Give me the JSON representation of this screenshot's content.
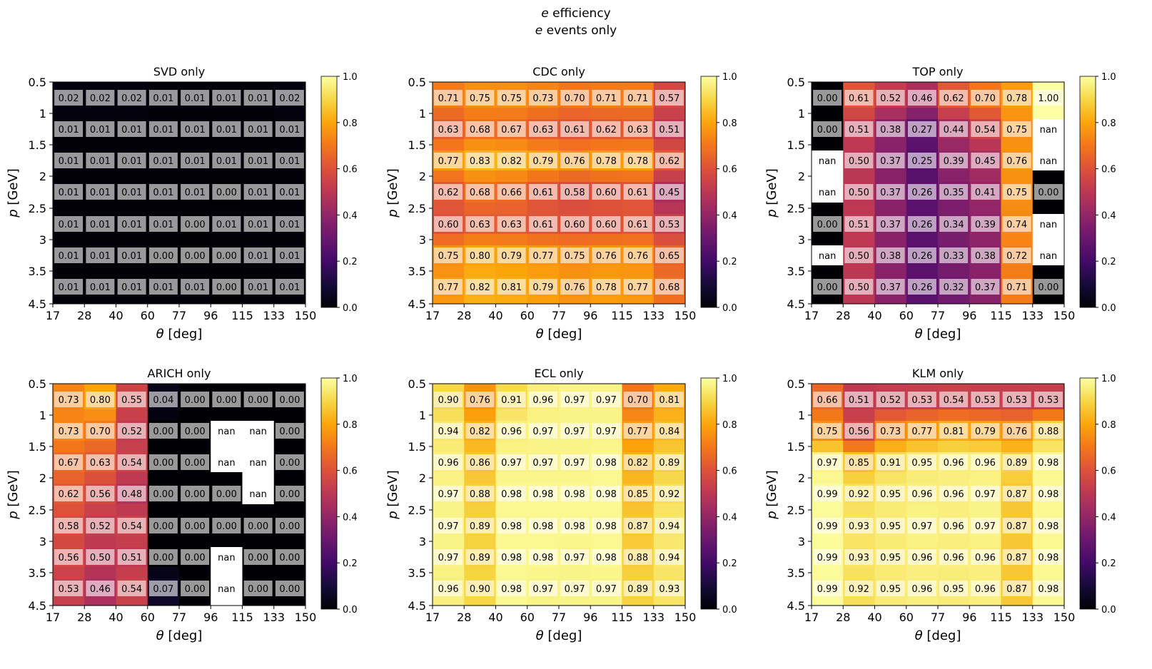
{
  "figure": {
    "title_symbol": "e",
    "title_line1_rest": " efficiency",
    "title_line2_rest": " events only"
  },
  "chart_data": {
    "type": "heatmap",
    "colormap": "inferno",
    "missing_label": "nan",
    "x_label_symbol": "θ",
    "x_label_rest": " [deg]",
    "y_label_symbol": "p",
    "y_label_rest": " [GeV]",
    "x_edges": [
      "17",
      "28",
      "40",
      "60",
      "77",
      "96",
      "115",
      "133",
      "150"
    ],
    "y_edges": [
      "0.5",
      "1",
      "1.5",
      "2",
      "2.5",
      "3",
      "3.5",
      "4.5"
    ],
    "colorbar_ticks": [
      "0.0",
      "0.2",
      "0.4",
      "0.6",
      "0.8",
      "1.0"
    ],
    "value_range": [
      0,
      1
    ],
    "panels": [
      {
        "title": "SVD only",
        "values": [
          [
            0.02,
            0.02,
            0.02,
            0.01,
            0.01,
            0.01,
            0.01,
            0.02
          ],
          [
            0.01,
            0.01,
            0.01,
            0.01,
            0.01,
            0.01,
            0.01,
            0.01
          ],
          [
            0.01,
            0.01,
            0.01,
            0.01,
            0.01,
            0.01,
            0.01,
            0.01
          ],
          [
            0.01,
            0.01,
            0.01,
            0.01,
            0.01,
            0.0,
            0.01,
            0.01
          ],
          [
            0.01,
            0.01,
            0.01,
            0.01,
            0.0,
            0.01,
            0.01,
            0.01
          ],
          [
            0.01,
            0.01,
            0.01,
            0.0,
            0.0,
            0.0,
            0.01,
            0.01
          ],
          [
            0.01,
            0.01,
            0.01,
            0.01,
            0.01,
            0.0,
            0.01,
            0.01
          ]
        ]
      },
      {
        "title": "CDC only",
        "values": [
          [
            0.71,
            0.75,
            0.75,
            0.73,
            0.7,
            0.71,
            0.71,
            0.57
          ],
          [
            0.63,
            0.68,
            0.67,
            0.63,
            0.61,
            0.62,
            0.63,
            0.51
          ],
          [
            0.77,
            0.83,
            0.82,
            0.79,
            0.76,
            0.78,
            0.78,
            0.62
          ],
          [
            0.62,
            0.68,
            0.66,
            0.61,
            0.58,
            0.6,
            0.61,
            0.45
          ],
          [
            0.6,
            0.63,
            0.63,
            0.61,
            0.6,
            0.6,
            0.61,
            0.53
          ],
          [
            0.75,
            0.8,
            0.79,
            0.77,
            0.75,
            0.76,
            0.76,
            0.65
          ],
          [
            0.77,
            0.82,
            0.81,
            0.79,
            0.76,
            0.78,
            0.77,
            0.68
          ]
        ]
      },
      {
        "title": "TOP only",
        "values": [
          [
            0.0,
            0.61,
            0.52,
            0.46,
            0.62,
            0.7,
            0.78,
            1.0
          ],
          [
            0.0,
            0.51,
            0.38,
            0.27,
            0.44,
            0.54,
            0.75,
            null
          ],
          [
            null,
            0.5,
            0.37,
            0.25,
            0.39,
            0.45,
            0.76,
            null
          ],
          [
            null,
            0.5,
            0.37,
            0.26,
            0.35,
            0.41,
            0.75,
            0.0
          ],
          [
            0.0,
            0.51,
            0.37,
            0.26,
            0.34,
            0.39,
            0.74,
            null
          ],
          [
            null,
            0.5,
            0.38,
            0.26,
            0.33,
            0.38,
            0.72,
            null
          ],
          [
            0.0,
            0.5,
            0.37,
            0.26,
            0.32,
            0.37,
            0.71,
            0.0
          ]
        ]
      },
      {
        "title": "ARICH only",
        "values": [
          [
            0.73,
            0.8,
            0.55,
            0.04,
            0.0,
            0.0,
            0.0,
            0.0
          ],
          [
            0.73,
            0.7,
            0.52,
            0.0,
            0.0,
            null,
            null,
            0.0
          ],
          [
            0.67,
            0.63,
            0.54,
            0.0,
            0.0,
            null,
            null,
            0.0
          ],
          [
            0.62,
            0.56,
            0.48,
            0.0,
            0.0,
            0.0,
            null,
            0.0
          ],
          [
            0.58,
            0.52,
            0.54,
            0.0,
            0.0,
            0.0,
            0.0,
            0.0
          ],
          [
            0.56,
            0.5,
            0.51,
            0.0,
            0.0,
            null,
            0.0,
            0.0
          ],
          [
            0.53,
            0.46,
            0.54,
            0.07,
            0.0,
            null,
            0.0,
            0.0
          ]
        ]
      },
      {
        "title": "ECL only",
        "values": [
          [
            0.9,
            0.76,
            0.91,
            0.96,
            0.97,
            0.97,
            0.7,
            0.81
          ],
          [
            0.94,
            0.82,
            0.96,
            0.97,
            0.97,
            0.97,
            0.77,
            0.84
          ],
          [
            0.96,
            0.86,
            0.97,
            0.97,
            0.97,
            0.98,
            0.82,
            0.89
          ],
          [
            0.97,
            0.88,
            0.98,
            0.98,
            0.98,
            0.98,
            0.85,
            0.92
          ],
          [
            0.97,
            0.89,
            0.98,
            0.98,
            0.98,
            0.98,
            0.87,
            0.94
          ],
          [
            0.97,
            0.89,
            0.98,
            0.98,
            0.97,
            0.98,
            0.88,
            0.94
          ],
          [
            0.96,
            0.9,
            0.98,
            0.97,
            0.97,
            0.97,
            0.89,
            0.93
          ]
        ]
      },
      {
        "title": "KLM only",
        "values": [
          [
            0.66,
            0.51,
            0.52,
            0.53,
            0.54,
            0.53,
            0.53,
            0.53
          ],
          [
            0.75,
            0.56,
            0.73,
            0.77,
            0.81,
            0.79,
            0.76,
            0.88
          ],
          [
            0.97,
            0.85,
            0.91,
            0.95,
            0.96,
            0.96,
            0.89,
            0.98
          ],
          [
            0.99,
            0.92,
            0.95,
            0.96,
            0.96,
            0.97,
            0.87,
            0.98
          ],
          [
            0.99,
            0.93,
            0.95,
            0.97,
            0.96,
            0.97,
            0.87,
            0.98
          ],
          [
            0.99,
            0.93,
            0.95,
            0.96,
            0.96,
            0.96,
            0.87,
            0.98
          ],
          [
            0.99,
            0.92,
            0.95,
            0.96,
            0.95,
            0.96,
            0.87,
            0.98
          ]
        ]
      }
    ]
  }
}
